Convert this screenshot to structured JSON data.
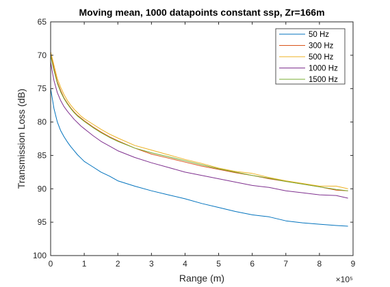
{
  "chart_data": {
    "type": "line",
    "title": "Moving mean, 1000 datapoints constant ssp, Zr=166m",
    "xlabel": "Range (m)",
    "ylabel": "Transmission Loss (dB)",
    "x_exponent_label": "×10⁵",
    "xlim": [
      0,
      900000
    ],
    "ylim": [
      65,
      100
    ],
    "y_reversed": true,
    "x_ticks": [
      0,
      1,
      2,
      3,
      4,
      5,
      6,
      7,
      8,
      9
    ],
    "x_tick_labels": [
      "0",
      "1",
      "2",
      "3",
      "4",
      "5",
      "6",
      "7",
      "8",
      "9"
    ],
    "y_ticks": [
      65,
      70,
      75,
      80,
      85,
      90,
      95,
      100
    ],
    "y_tick_labels": [
      "65",
      "70",
      "75",
      "80",
      "85",
      "90",
      "95",
      "100"
    ],
    "grid": false,
    "legend_position": "top-right",
    "series": [
      {
        "name": "50 Hz",
        "color": "#0072BD",
        "points": [
          [
            0,
            75
          ],
          [
            5000,
            76.5
          ],
          [
            10000,
            78
          ],
          [
            20000,
            80
          ],
          [
            30000,
            81.3
          ],
          [
            40000,
            82.2
          ],
          [
            50000,
            83
          ],
          [
            60000,
            83.7
          ],
          [
            70000,
            84.3
          ],
          [
            80000,
            84.9
          ],
          [
            90000,
            85.4
          ],
          [
            100000,
            85.9
          ],
          [
            125000,
            86.7
          ],
          [
            150000,
            87.5
          ],
          [
            175000,
            88.1
          ],
          [
            200000,
            88.8
          ],
          [
            250000,
            89.6
          ],
          [
            300000,
            90.3
          ],
          [
            350000,
            90.9
          ],
          [
            400000,
            91.5
          ],
          [
            450000,
            92.2
          ],
          [
            500000,
            92.8
          ],
          [
            550000,
            93.4
          ],
          [
            600000,
            93.9
          ],
          [
            650000,
            94.2
          ],
          [
            700000,
            94.8
          ],
          [
            750000,
            95.1
          ],
          [
            800000,
            95.3
          ],
          [
            850000,
            95.5
          ],
          [
            885000,
            95.6
          ]
        ]
      },
      {
        "name": "300 Hz",
        "color": "#D95319",
        "points": [
          [
            0,
            69.5
          ],
          [
            5000,
            70.8
          ],
          [
            10000,
            72
          ],
          [
            20000,
            74
          ],
          [
            30000,
            75.3
          ],
          [
            40000,
            76.4
          ],
          [
            50000,
            77.2
          ],
          [
            60000,
            77.9
          ],
          [
            70000,
            78.5
          ],
          [
            80000,
            79
          ],
          [
            90000,
            79.4
          ],
          [
            100000,
            79.8
          ],
          [
            125000,
            80.7
          ],
          [
            150000,
            81.5
          ],
          [
            175000,
            82.2
          ],
          [
            200000,
            82.8
          ],
          [
            250000,
            83.9
          ],
          [
            300000,
            84.8
          ],
          [
            350000,
            85.4
          ],
          [
            400000,
            86
          ],
          [
            450000,
            86.6
          ],
          [
            500000,
            87.1
          ],
          [
            550000,
            87.6
          ],
          [
            600000,
            88
          ],
          [
            650000,
            88.5
          ],
          [
            700000,
            88.9
          ],
          [
            750000,
            89.3
          ],
          [
            800000,
            89.7
          ],
          [
            850000,
            90.2
          ],
          [
            885000,
            90.3
          ]
        ]
      },
      {
        "name": "500 Hz",
        "color": "#EDB120",
        "points": [
          [
            0,
            69.5
          ],
          [
            5000,
            70.5
          ],
          [
            10000,
            71.5
          ],
          [
            20000,
            73.5
          ],
          [
            30000,
            74.8
          ],
          [
            40000,
            75.9
          ],
          [
            50000,
            76.8
          ],
          [
            60000,
            77.5
          ],
          [
            70000,
            78.1
          ],
          [
            80000,
            78.6
          ],
          [
            90000,
            79.1
          ],
          [
            100000,
            79.5
          ],
          [
            125000,
            80.3
          ],
          [
            150000,
            81.1
          ],
          [
            175000,
            81.8
          ],
          [
            200000,
            82.4
          ],
          [
            250000,
            83.5
          ],
          [
            300000,
            84.2
          ],
          [
            350000,
            84.9
          ],
          [
            400000,
            85.6
          ],
          [
            450000,
            86.2
          ],
          [
            500000,
            86.9
          ],
          [
            550000,
            87.4
          ],
          [
            600000,
            87.7
          ],
          [
            650000,
            88.3
          ],
          [
            700000,
            88.8
          ],
          [
            750000,
            89.2
          ],
          [
            800000,
            89.6
          ],
          [
            850000,
            89.6
          ],
          [
            885000,
            90
          ]
        ]
      },
      {
        "name": "1000 Hz",
        "color": "#7E2F8E",
        "points": [
          [
            0,
            71
          ],
          [
            5000,
            72.5
          ],
          [
            10000,
            73.8
          ],
          [
            20000,
            75.6
          ],
          [
            30000,
            76.8
          ],
          [
            40000,
            77.7
          ],
          [
            50000,
            78.4
          ],
          [
            60000,
            79
          ],
          [
            70000,
            79.6
          ],
          [
            80000,
            80.1
          ],
          [
            90000,
            80.6
          ],
          [
            100000,
            81
          ],
          [
            125000,
            82
          ],
          [
            150000,
            82.9
          ],
          [
            175000,
            83.6
          ],
          [
            200000,
            84.3
          ],
          [
            250000,
            85.3
          ],
          [
            300000,
            86.1
          ],
          [
            350000,
            86.8
          ],
          [
            400000,
            87.5
          ],
          [
            450000,
            88
          ],
          [
            500000,
            88.5
          ],
          [
            550000,
            89
          ],
          [
            600000,
            89.5
          ],
          [
            650000,
            89.8
          ],
          [
            700000,
            90.3
          ],
          [
            750000,
            90.6
          ],
          [
            800000,
            90.9
          ],
          [
            850000,
            91
          ],
          [
            885000,
            91.4
          ]
        ]
      },
      {
        "name": "1500 Hz",
        "color": "#77AC30",
        "points": [
          [
            0,
            70
          ],
          [
            5000,
            71.2
          ],
          [
            10000,
            72.3
          ],
          [
            20000,
            74.2
          ],
          [
            30000,
            75.5
          ],
          [
            40000,
            76.5
          ],
          [
            50000,
            77.3
          ],
          [
            60000,
            78
          ],
          [
            70000,
            78.6
          ],
          [
            80000,
            79.1
          ],
          [
            90000,
            79.5
          ],
          [
            100000,
            79.9
          ],
          [
            125000,
            80.8
          ],
          [
            150000,
            81.6
          ],
          [
            175000,
            82.3
          ],
          [
            200000,
            82.9
          ],
          [
            250000,
            83.9
          ],
          [
            300000,
            84.6
          ],
          [
            350000,
            85.2
          ],
          [
            400000,
            85.8
          ],
          [
            450000,
            86.4
          ],
          [
            500000,
            87
          ],
          [
            550000,
            87.5
          ],
          [
            600000,
            88
          ],
          [
            650000,
            88.4
          ],
          [
            700000,
            88.9
          ],
          [
            750000,
            89.3
          ],
          [
            800000,
            89.7
          ],
          [
            850000,
            90.1
          ],
          [
            885000,
            90.3
          ]
        ]
      }
    ]
  }
}
